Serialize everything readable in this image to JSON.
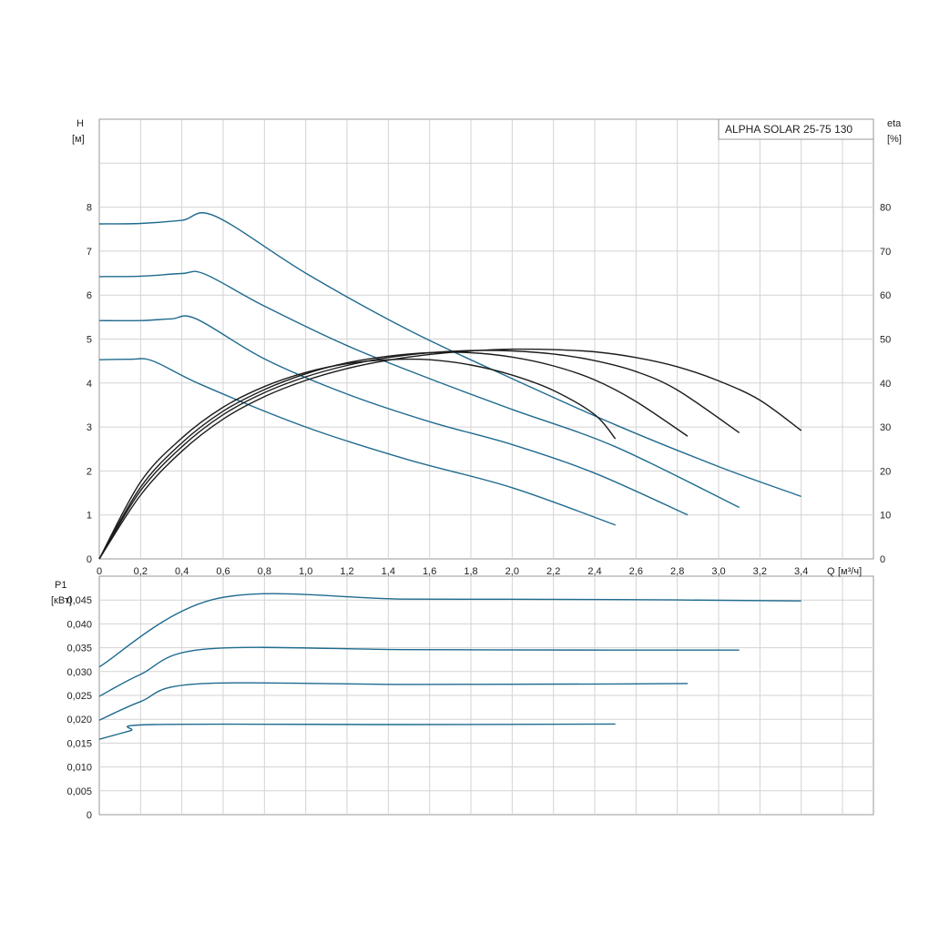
{
  "chart_data": [
    {
      "type": "line",
      "title": "ALPHA SOLAR 25-75  130",
      "ylabel": "H",
      "yunit": "[м]",
      "y2label": "eta",
      "y2unit": "[%]",
      "xlabel": "Q",
      "xunit": "[м³/ч]",
      "xlim": [
        0,
        3.75
      ],
      "ylim": [
        0,
        10
      ],
      "y2lim": [
        0,
        100
      ],
      "x_ticks": [
        "0",
        "0,2",
        "0,4",
        "0,6",
        "0,8",
        "1,0",
        "1,2",
        "1,4",
        "1,6",
        "1,8",
        "2,0",
        "2,2",
        "2,4",
        "2,6",
        "2,8",
        "3,0",
        "3,2",
        "3,4"
      ],
      "y_ticks": [
        "0",
        "1",
        "2",
        "3",
        "4",
        "5",
        "6",
        "7",
        "8"
      ],
      "y2_ticks": [
        "0",
        "10",
        "20",
        "30",
        "40",
        "50",
        "60",
        "70",
        "80"
      ],
      "grid": true,
      "head_color": "#1f6b8f",
      "eta_color": "#1c1c1c",
      "head_series": [
        {
          "points": [
            [
              0,
              7.62
            ],
            [
              0.2,
              7.63
            ],
            [
              0.4,
              7.7
            ],
            [
              0.56,
              7.8
            ],
            [
              1.0,
              6.5
            ],
            [
              1.5,
              5.2
            ],
            [
              2.0,
              4.1
            ],
            [
              2.5,
              3.05
            ],
            [
              3.0,
              2.1
            ],
            [
              3.4,
              1.42
            ]
          ]
        },
        {
          "points": [
            [
              0,
              6.42
            ],
            [
              0.2,
              6.43
            ],
            [
              0.4,
              6.49
            ],
            [
              0.51,
              6.48
            ],
            [
              0.8,
              5.75
            ],
            [
              1.2,
              4.85
            ],
            [
              1.6,
              4.1
            ],
            [
              2.0,
              3.4
            ],
            [
              2.5,
              2.55
            ],
            [
              3.1,
              1.17
            ]
          ]
        },
        {
          "points": [
            [
              0,
              5.42
            ],
            [
              0.2,
              5.42
            ],
            [
              0.35,
              5.46
            ],
            [
              0.47,
              5.46
            ],
            [
              0.8,
              4.55
            ],
            [
              1.2,
              3.75
            ],
            [
              1.6,
              3.12
            ],
            [
              2.0,
              2.6
            ],
            [
              2.4,
              1.95
            ],
            [
              2.85,
              1.0
            ]
          ]
        },
        {
          "points": [
            [
              0,
              4.53
            ],
            [
              0.15,
              4.54
            ],
            [
              0.26,
              4.5
            ],
            [
              0.5,
              3.95
            ],
            [
              1.0,
              3.0
            ],
            [
              1.5,
              2.25
            ],
            [
              2.0,
              1.62
            ],
            [
              2.5,
              0.77
            ]
          ]
        }
      ],
      "eta_series": [
        {
          "points": [
            [
              0,
              0
            ],
            [
              0.2,
              14.5
            ],
            [
              0.4,
              24.5
            ],
            [
              0.6,
              31.8
            ],
            [
              0.8,
              36.9
            ],
            [
              1.0,
              40.6
            ],
            [
              1.2,
              43.3
            ],
            [
              1.4,
              45.2
            ],
            [
              1.6,
              46.5
            ],
            [
              1.8,
              47.3
            ],
            [
              2.0,
              47.7
            ],
            [
              2.2,
              47.6
            ],
            [
              2.4,
              47.1
            ],
            [
              2.6,
              45.8
            ],
            [
              2.8,
              43.7
            ],
            [
              3.0,
              40.5
            ],
            [
              3.2,
              36.1
            ],
            [
              3.4,
              29.2
            ]
          ]
        },
        {
          "points": [
            [
              0,
              0
            ],
            [
              0.2,
              15.5
            ],
            [
              0.4,
              25.5
            ],
            [
              0.6,
              32.8
            ],
            [
              0.8,
              37.8
            ],
            [
              1.0,
              41.4
            ],
            [
              1.2,
              44.0
            ],
            [
              1.4,
              45.8
            ],
            [
              1.6,
              46.9
            ],
            [
              1.8,
              47.4
            ],
            [
              2.0,
              47.3
            ],
            [
              2.2,
              46.6
            ],
            [
              2.4,
              45.1
            ],
            [
              2.6,
              42.6
            ],
            [
              2.8,
              38.4
            ],
            [
              3.1,
              28.7
            ]
          ]
        },
        {
          "points": [
            [
              0,
              0
            ],
            [
              0.2,
              16.3
            ],
            [
              0.4,
              26.4
            ],
            [
              0.6,
              33.6
            ],
            [
              0.8,
              38.5
            ],
            [
              1.0,
              42.1
            ],
            [
              1.2,
              44.6
            ],
            [
              1.4,
              46.1
            ],
            [
              1.6,
              46.9
            ],
            [
              1.8,
              46.9
            ],
            [
              2.0,
              45.9
            ],
            [
              2.2,
              43.9
            ],
            [
              2.4,
              40.7
            ],
            [
              2.6,
              35.8
            ],
            [
              2.85,
              27.9
            ]
          ]
        },
        {
          "points": [
            [
              0,
              0
            ],
            [
              0.2,
              17.5
            ],
            [
              0.4,
              27.5
            ],
            [
              0.6,
              34.5
            ],
            [
              0.8,
              39.2
            ],
            [
              1.0,
              42.4
            ],
            [
              1.2,
              44.4
            ],
            [
              1.4,
              45.3
            ],
            [
              1.6,
              45.3
            ],
            [
              1.8,
              44.1
            ],
            [
              2.0,
              41.8
            ],
            [
              2.2,
              38.3
            ],
            [
              2.4,
              32.8
            ],
            [
              2.5,
              27.3
            ]
          ]
        }
      ]
    },
    {
      "type": "line",
      "ylabel": "P1",
      "yunit": "[кВт]",
      "xlim": [
        0,
        3.75
      ],
      "ylim": [
        0,
        0.05
      ],
      "y_ticks": [
        "0",
        "0,005",
        "0,010",
        "0,015",
        "0,020",
        "0,025",
        "0,030",
        "0,035",
        "0,040",
        "0,045"
      ],
      "grid": true,
      "power_color": "#1f6b8f",
      "power_series": [
        {
          "points": [
            [
              0,
              0.031
            ],
            [
              0.57,
              0.0453
            ],
            [
              1.5,
              0.0452
            ],
            [
              2.5,
              0.0451
            ],
            [
              3.4,
              0.0448
            ]
          ]
        },
        {
          "points": [
            [
              0,
              0.0248
            ],
            [
              0.2,
              0.0294
            ],
            [
              0.51,
              0.0347
            ],
            [
              1.5,
              0.0346
            ],
            [
              2.5,
              0.0345
            ],
            [
              3.1,
              0.0345
            ]
          ]
        },
        {
          "points": [
            [
              0,
              0.0198
            ],
            [
              0.2,
              0.0237
            ],
            [
              0.47,
              0.0274
            ],
            [
              1.5,
              0.0273
            ],
            [
              2.5,
              0.0274
            ],
            [
              2.85,
              0.0275
            ]
          ]
        },
        {
          "points": [
            [
              0,
              0.0158
            ],
            [
              0.15,
              0.0176
            ],
            [
              0.26,
              0.0189
            ],
            [
              1.5,
              0.0189
            ],
            [
              2.5,
              0.019
            ]
          ]
        }
      ]
    }
  ]
}
